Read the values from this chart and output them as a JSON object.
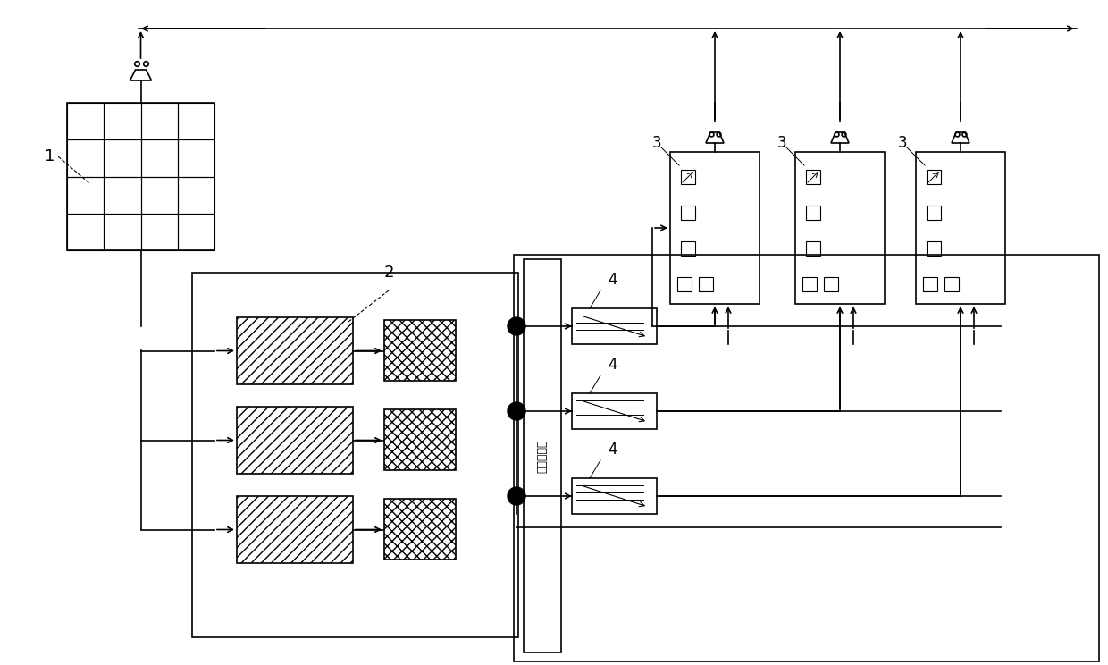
{
  "bg_color": "#ffffff",
  "line_color": "#000000",
  "label_1": "1",
  "label_2": "2",
  "label_3": "3",
  "label_4": "4",
  "chinese_text": "被保护材料",
  "fig_width": 12.4,
  "fig_height": 7.44
}
